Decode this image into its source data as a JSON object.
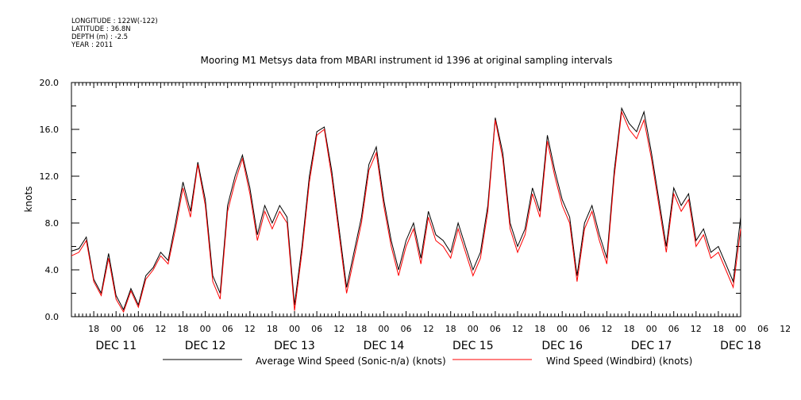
{
  "meta": {
    "longitude": "LONGITUDE : 122W(-122)",
    "latitude": "LATITUDE : 36.8N",
    "depth": "DEPTH (m) : -2.5",
    "year": "YEAR : 2011"
  },
  "chart_data": {
    "type": "line",
    "title": "Mooring M1 Metsys data from MBARI instrument id 1396 at original sampling intervals",
    "ylabel": "knots",
    "ylim": [
      0,
      20
    ],
    "yticks": [
      "0.0",
      "4.0",
      "8.0",
      "12.0",
      "16.0",
      "20.0"
    ],
    "xlim_hours_from_dec11_00": [
      12,
      192
    ],
    "hour_tick_labels": [
      "18",
      "00",
      "06",
      "12",
      "18",
      "00",
      "06",
      "12",
      "18",
      "00",
      "06",
      "12",
      "18",
      "00",
      "06",
      "12",
      "18",
      "00",
      "06",
      "12",
      "18",
      "00",
      "06",
      "12",
      "18",
      "00",
      "06",
      "12",
      "18",
      "00",
      "06",
      "12"
    ],
    "day_labels": [
      "DEC 11",
      "DEC 12",
      "DEC 13",
      "DEC 14",
      "DEC 15",
      "DEC 16",
      "DEC 17",
      "DEC 18"
    ],
    "grid": false,
    "legend_placement": "bottom",
    "series": [
      {
        "name": "Average Wind Speed (Sonic-n/a) (knots)",
        "color": "#000000",
        "hours": [
          12,
          14,
          16,
          18,
          20,
          22,
          24,
          26,
          28,
          30,
          32,
          34,
          36,
          38,
          40,
          42,
          44,
          46,
          48,
          50,
          52,
          54,
          56,
          58,
          60,
          62,
          64,
          66,
          68,
          70,
          72,
          74,
          76,
          78,
          80,
          82,
          84,
          86,
          88,
          90,
          92,
          94,
          96,
          98,
          100,
          102,
          104,
          106,
          108,
          110,
          112,
          114,
          116,
          118,
          120,
          122,
          124,
          126,
          128,
          130,
          132,
          134,
          136,
          138,
          140,
          142,
          144,
          146,
          148,
          150,
          152,
          154,
          156,
          158,
          160,
          162,
          164,
          166,
          168,
          170,
          172,
          174,
          176,
          178,
          180,
          182,
          184,
          186,
          188,
          190,
          192
        ],
        "values": [
          5.6,
          5.8,
          6.8,
          3.2,
          2.0,
          5.4,
          1.8,
          0.6,
          2.4,
          1.0,
          3.5,
          4.2,
          5.5,
          4.8,
          8.0,
          11.5,
          9.0,
          13.2,
          10.0,
          3.5,
          2.0,
          9.5,
          12.0,
          13.8,
          11.0,
          7.0,
          9.5,
          8.0,
          9.5,
          8.5,
          1.0,
          6.0,
          12.0,
          15.8,
          16.2,
          12.5,
          7.5,
          2.5,
          5.5,
          8.5,
          13.0,
          14.5,
          10.0,
          6.5,
          4.0,
          6.5,
          8.0,
          5.0,
          9.0,
          7.0,
          6.5,
          5.5,
          8.0,
          6.0,
          4.0,
          5.5,
          9.5,
          17.0,
          14.0,
          8.0,
          6.0,
          7.5,
          11.0,
          9.0,
          15.5,
          12.5,
          10.0,
          8.5,
          3.5,
          8.0,
          9.5,
          7.0,
          5.0,
          12.5,
          17.8,
          16.5,
          15.8,
          17.5,
          14.0,
          10.0,
          6.0,
          11.0,
          9.5,
          10.5,
          6.5,
          7.5,
          5.5,
          6.0,
          4.5,
          3.0,
          8.5
        ]
      },
      {
        "name": "Wind Speed (Windbird) (knots)",
        "color": "#ff0000",
        "hours": [
          12,
          14,
          16,
          18,
          20,
          22,
          24,
          26,
          28,
          30,
          32,
          34,
          36,
          38,
          40,
          42,
          44,
          46,
          48,
          50,
          52,
          54,
          56,
          58,
          60,
          62,
          64,
          66,
          68,
          70,
          72,
          74,
          76,
          78,
          80,
          82,
          84,
          86,
          88,
          90,
          92,
          94,
          96,
          98,
          100,
          102,
          104,
          106,
          108,
          110,
          112,
          114,
          116,
          118,
          120,
          122,
          124,
          126,
          128,
          130,
          132,
          134,
          136,
          138,
          140,
          142,
          144,
          146,
          148,
          150,
          152,
          154,
          156,
          158,
          160,
          162,
          164,
          166,
          168,
          170,
          172,
          174,
          176,
          178,
          180,
          182,
          184,
          186,
          188,
          190,
          192
        ],
        "values": [
          5.2,
          5.5,
          6.5,
          3.0,
          1.8,
          5.0,
          1.5,
          0.4,
          2.2,
          0.8,
          3.2,
          4.0,
          5.2,
          4.5,
          7.5,
          11.0,
          8.5,
          13.0,
          9.5,
          3.0,
          1.5,
          9.0,
          11.5,
          13.5,
          10.5,
          6.5,
          9.0,
          7.5,
          9.0,
          8.0,
          0.5,
          5.5,
          11.5,
          15.5,
          16.0,
          12.0,
          7.0,
          2.0,
          5.0,
          8.0,
          12.5,
          14.0,
          9.5,
          6.0,
          3.5,
          6.0,
          7.5,
          4.5,
          8.5,
          6.5,
          6.0,
          5.0,
          7.5,
          5.5,
          3.5,
          5.0,
          9.0,
          16.8,
          13.5,
          7.5,
          5.5,
          7.0,
          10.5,
          8.5,
          15.0,
          12.0,
          9.5,
          8.0,
          3.0,
          7.5,
          9.0,
          6.5,
          4.5,
          12.0,
          17.5,
          16.0,
          15.2,
          16.8,
          13.5,
          9.5,
          5.5,
          10.5,
          9.0,
          10.0,
          6.0,
          7.0,
          5.0,
          5.5,
          4.0,
          2.5,
          7.5
        ]
      }
    ]
  }
}
